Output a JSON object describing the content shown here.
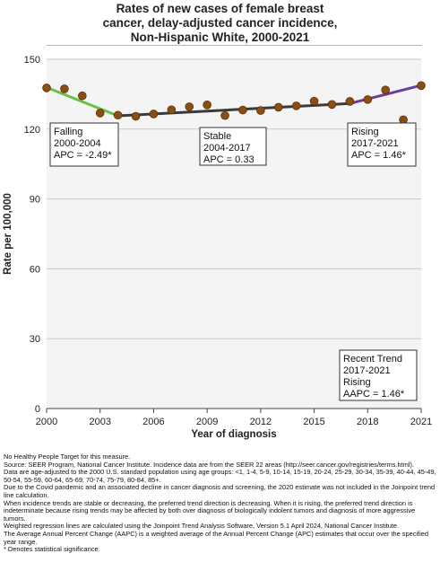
{
  "chart_data": {
    "type": "scatter",
    "title_lines": [
      "Rates of new cases of female breast",
      "cancer, delay-adjusted cancer incidence,",
      "Non-Hispanic White,  2000-2021"
    ],
    "xlabel": "Year of diagnosis",
    "ylabel": "Rate per 100,000",
    "xlim": [
      2000,
      2021
    ],
    "ylim": [
      0,
      150
    ],
    "x_ticks": [
      "2000",
      "2003",
      "2006",
      "2009",
      "2012",
      "2015",
      "2018",
      "2021"
    ],
    "y_ticks": [
      "0",
      "30",
      "60",
      "90",
      "120",
      "150"
    ],
    "grid": "horizontal",
    "points": [
      {
        "x": 2000,
        "y": 137.7
      },
      {
        "x": 2001,
        "y": 137.3
      },
      {
        "x": 2002,
        "y": 134.3
      },
      {
        "x": 2003,
        "y": 126.9
      },
      {
        "x": 2004,
        "y": 126.0
      },
      {
        "x": 2005,
        "y": 125.5
      },
      {
        "x": 2006,
        "y": 126.5
      },
      {
        "x": 2007,
        "y": 128.3
      },
      {
        "x": 2008,
        "y": 129.6
      },
      {
        "x": 2009,
        "y": 130.4
      },
      {
        "x": 2010,
        "y": 125.8
      },
      {
        "x": 2011,
        "y": 128.2
      },
      {
        "x": 2012,
        "y": 128.0
      },
      {
        "x": 2013,
        "y": 129.4
      },
      {
        "x": 2014,
        "y": 130.0
      },
      {
        "x": 2015,
        "y": 132.0
      },
      {
        "x": 2016,
        "y": 130.6
      },
      {
        "x": 2017,
        "y": 131.9
      },
      {
        "x": 2018,
        "y": 132.7
      },
      {
        "x": 2019,
        "y": 136.8
      },
      {
        "x": 2020,
        "y": 124.0
      },
      {
        "x": 2021,
        "y": 138.7
      }
    ],
    "trend_segments": [
      {
        "label": "Falling",
        "start": [
          2000,
          137.9
        ],
        "end": [
          2004,
          125.7
        ],
        "color": "#6abf4b"
      },
      {
        "label": "Stable",
        "start": [
          2004,
          125.7
        ],
        "end": [
          2017,
          131.0
        ],
        "color": "#3a3a3a"
      },
      {
        "label": "Rising",
        "start": [
          2017,
          131.0
        ],
        "end": [
          2021,
          138.8
        ],
        "color": "#6a3d9a"
      }
    ],
    "annotations": [
      {
        "lines": [
          "Falling",
          "2000-2004",
          "APC = -2.49*"
        ]
      },
      {
        "lines": [
          "Stable",
          "2004-2017",
          "APC =  0.33"
        ]
      },
      {
        "lines": [
          "Rising",
          "2017-2021",
          "APC =  1.46*"
        ]
      },
      {
        "lines": [
          "Recent Trend",
          "2017-2021",
          "Rising",
          "AAPC =  1.46*"
        ]
      }
    ],
    "marker_color": "#8b4f14"
  },
  "footnotes": [
    "No Healthy People Target for this measure.",
    "Source: SEER Program, National Cancer Institute. Incidence data are from the SEER 22 areas (http://seer.cancer.gov/registries/terms.html).",
    "Data are age-adjusted to the 2000 U.S. standard population using age groups: <1, 1-4, 5-9, 10-14, 15-19, 20-24, 25-29, 30-34, 35-39, 40-44, 45-49, 50-54, 55-59, 60-64, 65-69, 70-74, 75-79, 80-84, 85+.",
    "Due to the Covid pandemic and an associated decline in cancer diagnosis and screening, the 2020 estimate was not included in the Joinpoint trend line calculation.",
    "When incidence trends are stable or decreasing, the preferred trend direction is decreasing. When it is rising, the preferred trend direction is indeterminate because rising trends may be affected by both over diagnosis of biologically indolent tumors and diagnosis of more aggressive tumors.",
    "Weighted regression lines are calculated using the Joinpoint Trend Analysis Software, Version 5.1 April 2024, National Cancer Institute.",
    "The Average Annual Percent Change (AAPC) is a weighted average of the Annual Percent Change (APC) estimates that occur over the specified year range.",
    "* Denotes statistical significance."
  ]
}
